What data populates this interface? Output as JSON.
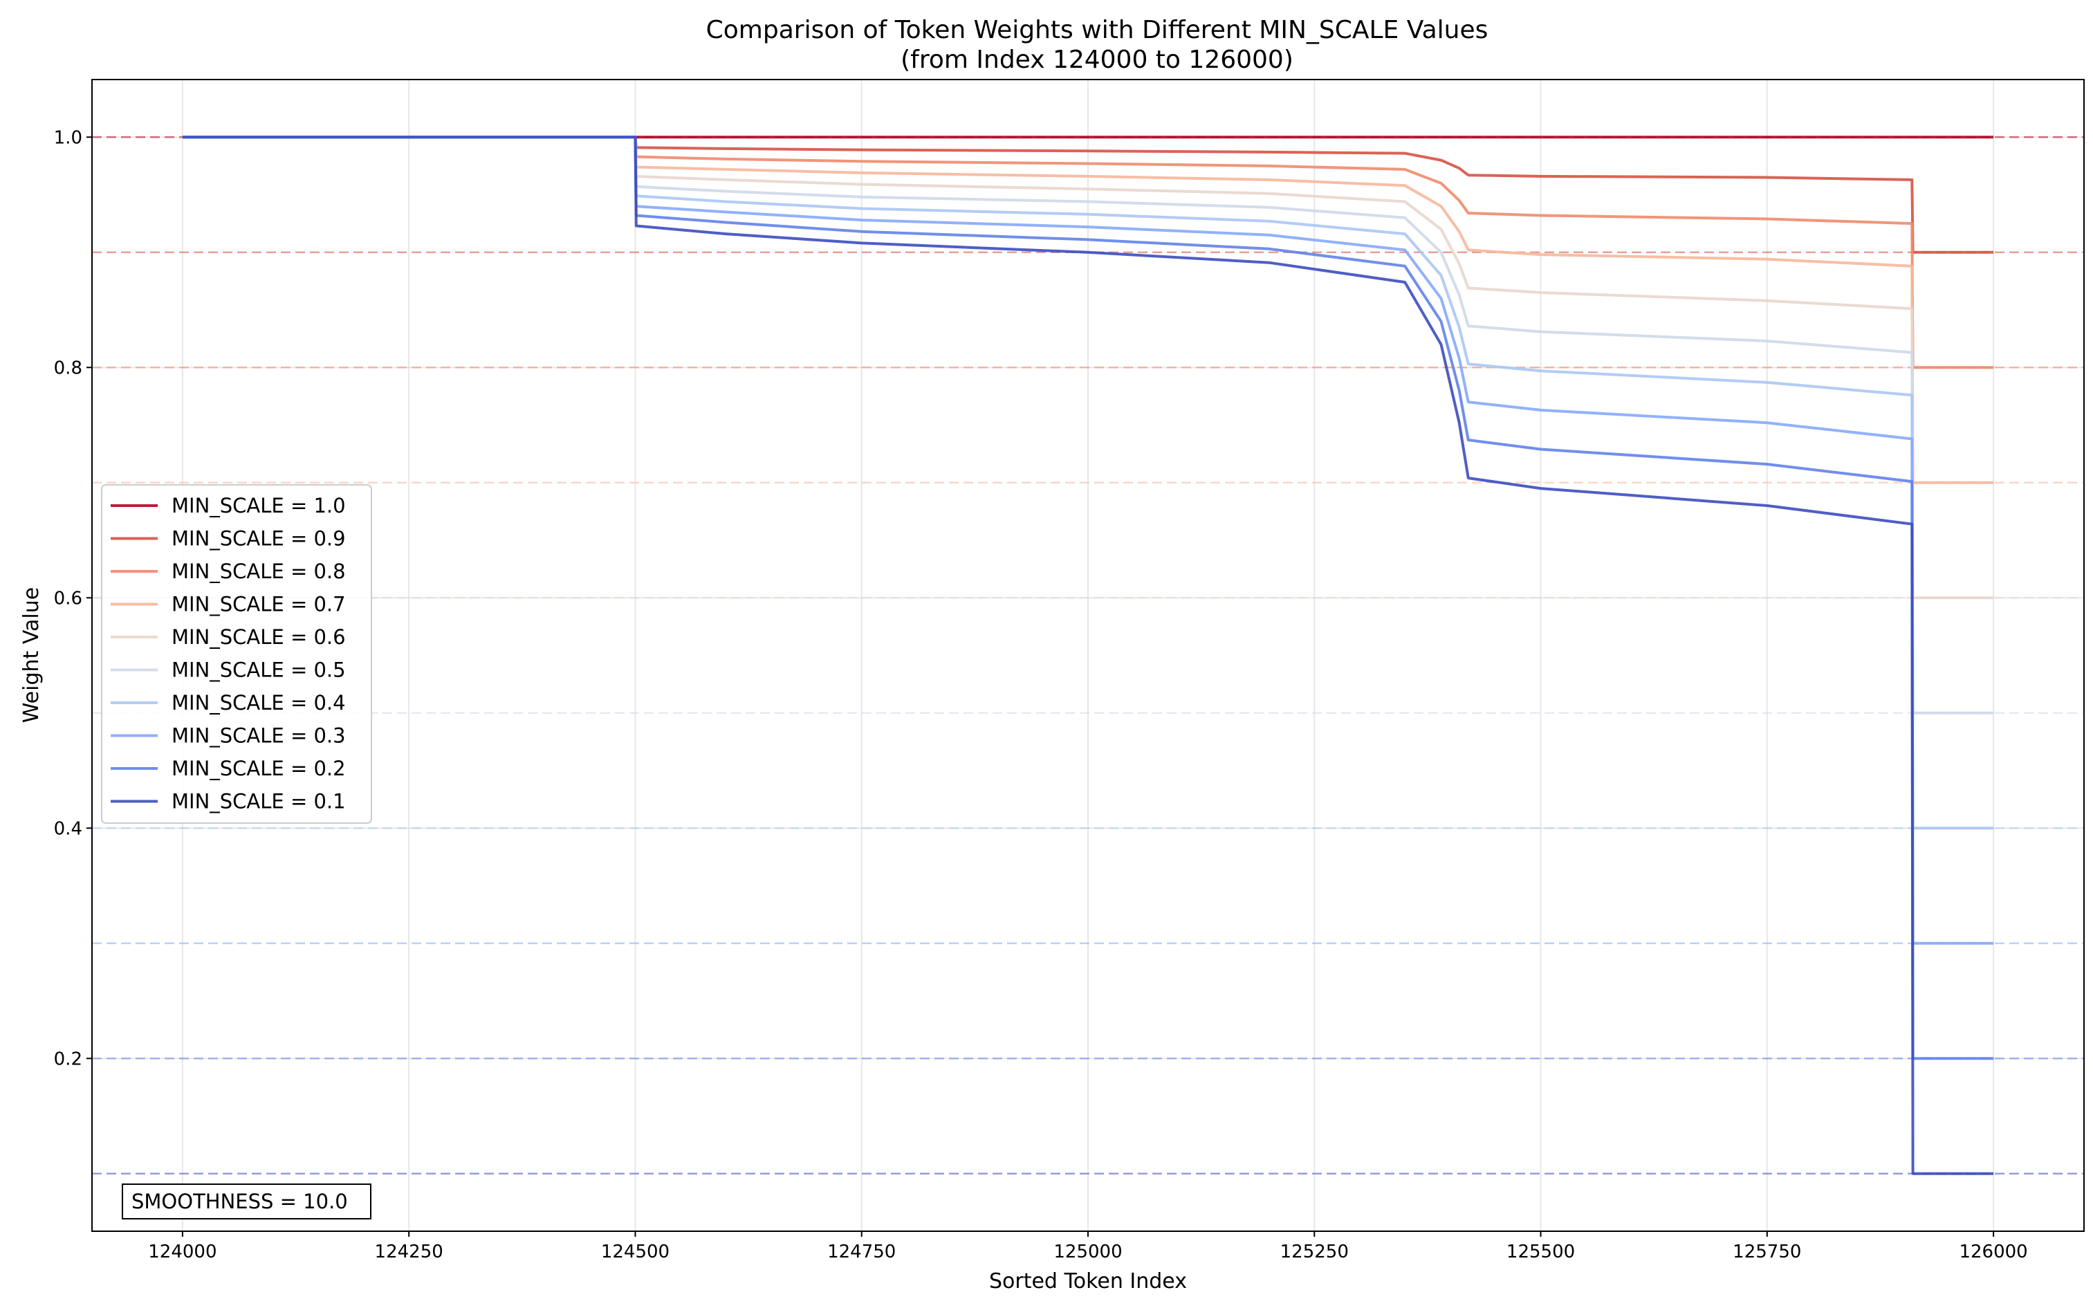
{
  "chart_data": {
    "type": "line",
    "title": "Comparison of Token Weights with Different MIN_SCALE Values",
    "subtitle": "(from Index 124000 to 126000)",
    "xlabel": "Sorted Token Index",
    "ylabel": "Weight Value",
    "xlim": [
      123900,
      126100
    ],
    "ylim": [
      0.05,
      1.05
    ],
    "x_ticks": [
      124000,
      124250,
      124500,
      124750,
      125000,
      125250,
      125500,
      125750,
      126000
    ],
    "y_ticks": [
      0.2,
      0.4,
      0.6,
      0.8,
      1.0
    ],
    "y_tick_labels": [
      "0.2",
      "0.4",
      "0.6",
      "0.8",
      "1.0"
    ],
    "grid": true,
    "legend_position": "center-left",
    "annotation": "SMOOTHNESS = 10.0",
    "reference_lines": [
      {
        "y": 1.0,
        "color": "#b40426"
      },
      {
        "y": 0.9,
        "color": "#d65244"
      },
      {
        "y": 0.8,
        "color": "#ef8a6c"
      },
      {
        "y": 0.7,
        "color": "#f6b79b"
      },
      {
        "y": 0.6,
        "color": "#e8d6cc"
      },
      {
        "y": 0.5,
        "color": "#cfd8e8"
      },
      {
        "y": 0.4,
        "color": "#aac7f4"
      },
      {
        "y": 0.3,
        "color": "#86a9fc"
      },
      {
        "y": 0.2,
        "color": "#6282ea"
      },
      {
        "y": 0.1,
        "color": "#3b4cc0"
      }
    ],
    "series": [
      {
        "name": "MIN_SCALE = 1.0",
        "color": "#b40426",
        "min_scale": 1.0,
        "x": [
          124000,
          124500,
          125390,
          125420,
          125910,
          125911,
          126000
        ],
        "y": [
          1.0,
          1.0,
          1.0,
          1.0,
          1.0,
          1.0,
          1.0
        ]
      },
      {
        "name": "MIN_SCALE = 0.9",
        "color": "#d65244",
        "min_scale": 0.9,
        "x": [
          124000,
          124500,
          124501,
          124600,
          124750,
          125000,
          125200,
          125350,
          125390,
          125410,
          125420,
          125500,
          125750,
          125910,
          125911,
          126000
        ],
        "y": [
          1.0,
          1.0,
          0.991,
          0.99,
          0.989,
          0.988,
          0.987,
          0.986,
          0.98,
          0.973,
          0.967,
          0.966,
          0.965,
          0.963,
          0.9,
          0.9
        ]
      },
      {
        "name": "MIN_SCALE = 0.8",
        "color": "#ef8a6c",
        "min_scale": 0.8,
        "x": [
          124000,
          124500,
          124501,
          124600,
          124750,
          125000,
          125200,
          125350,
          125390,
          125410,
          125420,
          125500,
          125750,
          125910,
          125911,
          126000
        ],
        "y": [
          1.0,
          1.0,
          0.983,
          0.981,
          0.979,
          0.977,
          0.975,
          0.972,
          0.96,
          0.945,
          0.934,
          0.932,
          0.929,
          0.925,
          0.8,
          0.8
        ]
      },
      {
        "name": "MIN_SCALE = 0.7",
        "color": "#f6b79b",
        "min_scale": 0.7,
        "x": [
          124000,
          124500,
          124501,
          124600,
          124750,
          125000,
          125200,
          125350,
          125390,
          125410,
          125420,
          125500,
          125750,
          125910,
          125911,
          126000
        ],
        "y": [
          1.0,
          1.0,
          0.974,
          0.972,
          0.969,
          0.966,
          0.963,
          0.958,
          0.94,
          0.918,
          0.902,
          0.898,
          0.894,
          0.888,
          0.7,
          0.7
        ]
      },
      {
        "name": "MIN_SCALE = 0.6",
        "color": "#e8d6cc",
        "min_scale": 0.6,
        "x": [
          124000,
          124500,
          124501,
          124600,
          124750,
          125000,
          125200,
          125350,
          125390,
          125410,
          125420,
          125500,
          125750,
          125910,
          125911,
          126000
        ],
        "y": [
          1.0,
          1.0,
          0.966,
          0.963,
          0.959,
          0.955,
          0.951,
          0.944,
          0.92,
          0.89,
          0.869,
          0.865,
          0.858,
          0.851,
          0.6,
          0.6
        ]
      },
      {
        "name": "MIN_SCALE = 0.5",
        "color": "#cfd8e8",
        "min_scale": 0.5,
        "x": [
          124000,
          124500,
          124501,
          124600,
          124750,
          125000,
          125200,
          125350,
          125390,
          125410,
          125420,
          125500,
          125750,
          125910,
          125911,
          126000
        ],
        "y": [
          1.0,
          1.0,
          0.957,
          0.953,
          0.948,
          0.944,
          0.939,
          0.93,
          0.9,
          0.863,
          0.836,
          0.831,
          0.823,
          0.813,
          0.5,
          0.5
        ]
      },
      {
        "name": "MIN_SCALE = 0.4",
        "color": "#aac7f4",
        "min_scale": 0.4,
        "x": [
          124000,
          124500,
          124501,
          124600,
          124750,
          125000,
          125200,
          125350,
          125390,
          125410,
          125420,
          125500,
          125750,
          125910,
          125911,
          126000
        ],
        "y": [
          1.0,
          1.0,
          0.949,
          0.944,
          0.938,
          0.933,
          0.927,
          0.916,
          0.88,
          0.835,
          0.803,
          0.797,
          0.787,
          0.776,
          0.4,
          0.4
        ]
      },
      {
        "name": "MIN_SCALE = 0.3",
        "color": "#86a9fc",
        "min_scale": 0.3,
        "x": [
          124000,
          124500,
          124501,
          124600,
          124750,
          125000,
          125200,
          125350,
          125390,
          125410,
          125420,
          125500,
          125750,
          125910,
          125911,
          126000
        ],
        "y": [
          1.0,
          1.0,
          0.94,
          0.935,
          0.928,
          0.922,
          0.915,
          0.902,
          0.86,
          0.808,
          0.77,
          0.763,
          0.752,
          0.738,
          0.3,
          0.3
        ]
      },
      {
        "name": "MIN_SCALE = 0.2",
        "color": "#6282ea",
        "min_scale": 0.2,
        "x": [
          124000,
          124500,
          124501,
          124600,
          124750,
          125000,
          125200,
          125350,
          125390,
          125410,
          125420,
          125500,
          125750,
          125910,
          125911,
          126000
        ],
        "y": [
          1.0,
          1.0,
          0.932,
          0.926,
          0.918,
          0.911,
          0.903,
          0.888,
          0.84,
          0.78,
          0.737,
          0.729,
          0.716,
          0.701,
          0.2,
          0.2
        ]
      },
      {
        "name": "MIN_SCALE = 0.1",
        "color": "#3b4cc0",
        "min_scale": 0.1,
        "x": [
          124000,
          124500,
          124501,
          124600,
          124750,
          125000,
          125200,
          125350,
          125390,
          125410,
          125420,
          125500,
          125750,
          125910,
          125911,
          126000
        ],
        "y": [
          1.0,
          1.0,
          0.923,
          0.916,
          0.908,
          0.9,
          0.891,
          0.874,
          0.82,
          0.752,
          0.704,
          0.695,
          0.68,
          0.664,
          0.1,
          0.1
        ]
      }
    ]
  }
}
